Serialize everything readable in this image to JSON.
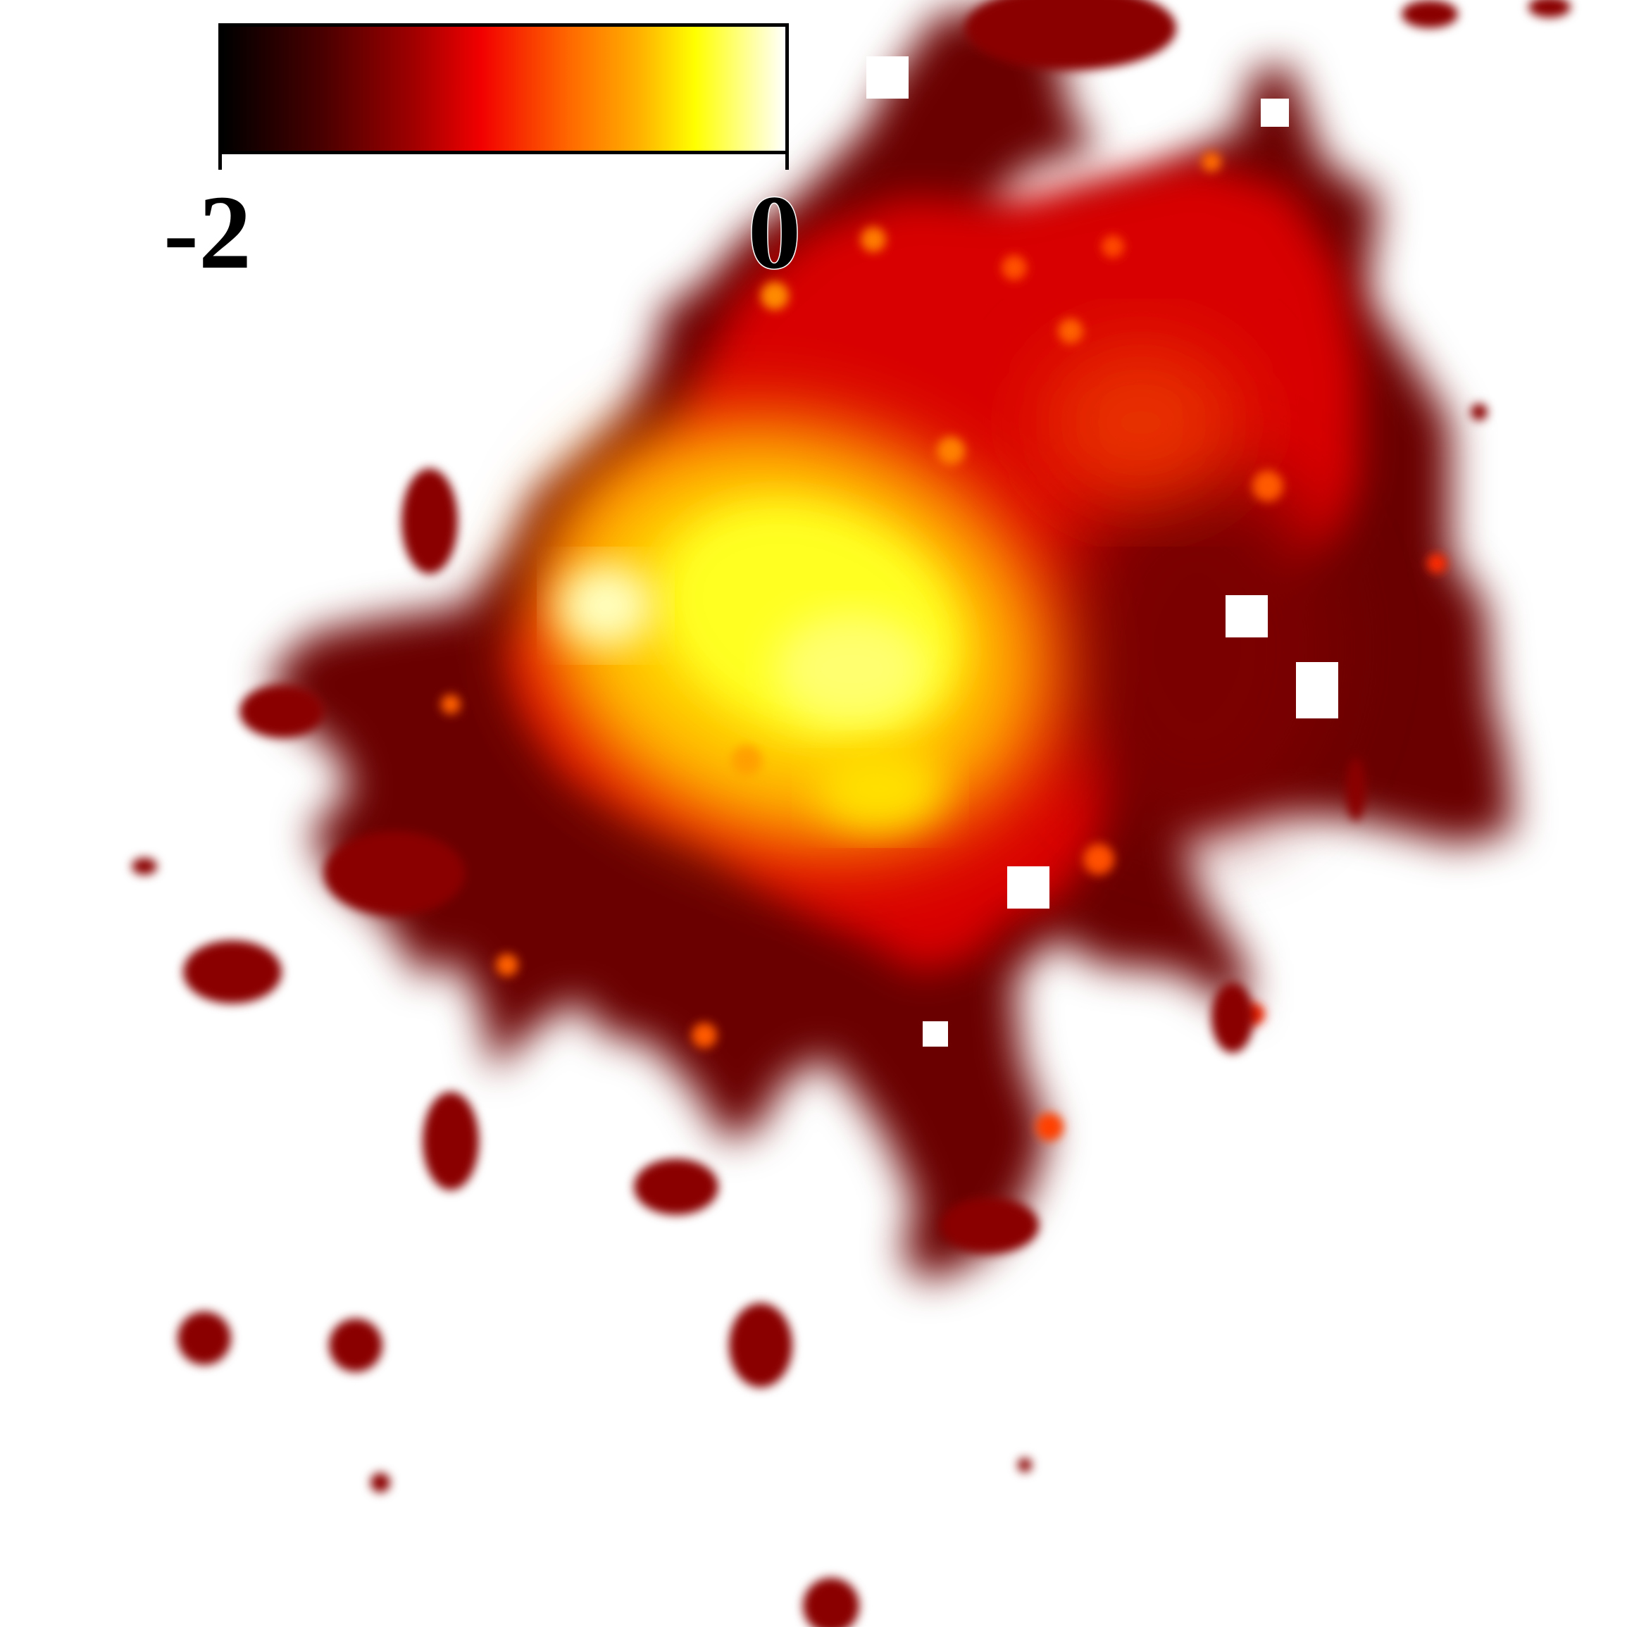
{
  "colorbar": {
    "min_label": "-2",
    "max_label": "0",
    "colormap": "hot",
    "colors": [
      "#000000",
      "#a00000",
      "#ff0000",
      "#ff9900",
      "#ffff00",
      "#ffffff"
    ]
  }
}
